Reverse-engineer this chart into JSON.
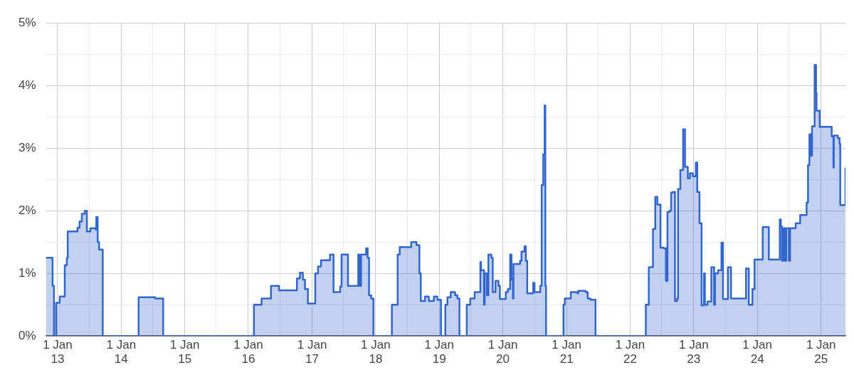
{
  "chart_data": {
    "type": "step",
    "x": [
      "2012-10-26",
      "2012-12-03",
      "2012-12-11",
      "2012-12-23",
      "2013-01-13",
      "2013-02-11",
      "2013-02-23",
      "2013-02-28",
      "2013-04-25",
      "2013-05-07",
      "2013-05-20",
      "2013-06-06",
      "2013-06-18",
      "2013-07-08",
      "2013-08-07",
      "2013-08-11",
      "2013-08-19",
      "2013-08-27",
      "2013-09-17",
      "2014-04-11",
      "2014-07-15",
      "2014-08-30",
      "2016-02-02",
      "2016-03-17",
      "2016-05-10",
      "2016-06-25",
      "2016-10-06",
      "2016-10-23",
      "2016-11-09",
      "2016-11-21",
      "2016-12-08",
      "2017-01-19",
      "2017-02-04",
      "2017-02-21",
      "2017-04-14",
      "2017-05-04",
      "2017-06-11",
      "2017-06-19",
      "2017-07-26",
      "2017-09-23",
      "2017-10-01",
      "2017-10-09",
      "2017-11-07",
      "2017-11-16",
      "2017-11-24",
      "2017-12-06",
      "2017-12-19",
      "2018-04-04",
      "2018-05-07",
      "2018-05-19",
      "2018-07-24",
      "2018-08-23",
      "2018-09-09",
      "2018-09-17",
      "2018-10-11",
      "2018-11-02",
      "2018-12-01",
      "2018-12-21",
      "2019-01-11",
      "2019-02-05",
      "2019-02-17",
      "2019-03-08",
      "2019-04-02",
      "2019-04-15",
      "2019-04-27",
      "2019-06-08",
      "2019-06-28",
      "2019-07-23",
      "2019-08-25",
      "2019-08-29",
      "2019-09-15",
      "2019-09-19",
      "2019-10-02",
      "2019-10-10",
      "2019-10-27",
      "2019-11-04",
      "2019-11-20",
      "2019-12-07",
      "2019-12-15",
      "2020-01-18",
      "2020-01-30",
      "2020-02-12",
      "2020-02-20",
      "2020-02-28",
      "2020-03-02",
      "2020-04-09",
      "2020-04-17",
      "2020-05-04",
      "2020-05-12",
      "2020-05-20",
      "2020-06-23",
      "2020-07-01",
      "2020-08-03",
      "2020-08-11",
      "2020-08-20",
      "2020-08-28",
      "2020-09-01",
      "2020-09-05",
      "2020-12-14",
      "2020-12-22",
      "2021-01-25",
      "2021-03-05",
      "2021-03-09",
      "2021-04-20",
      "2021-05-02",
      "2021-05-18",
      "2021-06-16",
      "2022-04-01",
      "2022-04-18",
      "2022-05-12",
      "2022-05-25",
      "2022-06-06",
      "2022-06-24",
      "2022-07-13",
      "2022-07-25",
      "2022-08-03",
      "2022-08-15",
      "2022-08-24",
      "2022-09-03",
      "2022-09-15",
      "2022-09-27",
      "2022-10-03",
      "2022-10-16",
      "2022-11-01",
      "2022-11-12",
      "2022-11-28",
      "2022-12-10",
      "2022-12-27",
      "2023-01-13",
      "2023-01-21",
      "2023-02-03",
      "2023-02-15",
      "2023-03-01",
      "2023-03-06",
      "2023-03-21",
      "2023-04-12",
      "2023-04-28",
      "2023-05-03",
      "2023-05-21",
      "2023-06-09",
      "2023-06-18",
      "2023-07-16",
      "2023-08-03",
      "2023-10-28",
      "2023-11-13",
      "2023-12-04",
      "2023-12-16",
      "2024-02-01",
      "2024-03-07",
      "2024-05-09",
      "2024-05-15",
      "2024-05-21",
      "2024-05-29",
      "2024-06-07",
      "2024-06-15",
      "2024-06-30",
      "2024-07-07",
      "2024-08-08",
      "2024-09-03",
      "2024-10-10",
      "2024-10-18",
      "2024-10-26",
      "2024-11-03",
      "2024-11-10",
      "2024-11-25",
      "2024-12-03",
      "2024-12-06",
      "2024-12-24",
      "2025-03-03",
      "2025-03-13",
      "2025-03-15",
      "2025-04-07",
      "2025-04-17",
      "2025-04-21",
      "2025-05-21"
    ],
    "series": [
      {
        "color": "#3366cc",
        "values": [
          1.25,
          0.8,
          0,
          0.53,
          0.63,
          1.13,
          1.25,
          1.67,
          1.73,
          1.83,
          1.95,
          2.0,
          1.67,
          1.72,
          1.7,
          1.9,
          1.5,
          1.38,
          0,
          0.62,
          0.6,
          0,
          0.5,
          0.6,
          0.8,
          0.73,
          0.92,
          1.01,
          0.9,
          0.75,
          0.52,
          1.0,
          1.11,
          1.21,
          1.3,
          0.7,
          0.79,
          1.3,
          0.8,
          1.3,
          0.8,
          1.3,
          1.4,
          1.25,
          0.65,
          0.6,
          0,
          0.5,
          1.3,
          1.42,
          1.5,
          1.45,
          1.0,
          0.56,
          0.63,
          0.56,
          0.63,
          0.58,
          0,
          0.5,
          0.62,
          0.7,
          0.65,
          0.6,
          0,
          0.5,
          0.6,
          0.7,
          1.18,
          1.05,
          0.5,
          1.0,
          0.65,
          1.3,
          1.25,
          0.7,
          0.88,
          0.8,
          0.59,
          0.7,
          0.75,
          1.3,
          0.9,
          0.6,
          1.15,
          1.2,
          1.35,
          1.43,
          1.2,
          0.68,
          0.85,
          0.7,
          0.8,
          2.41,
          2.9,
          3.68,
          0.8,
          0,
          0.5,
          0.6,
          0.7,
          0.68,
          0.72,
          0.7,
          0.6,
          0.58,
          0,
          0.5,
          1.1,
          1.71,
          2.22,
          2.1,
          1.41,
          1.4,
          0.88,
          1.98,
          2.0,
          2.29,
          2.3,
          0.56,
          0.6,
          2.35,
          2.65,
          3.3,
          2.7,
          2.52,
          2.6,
          2.55,
          2.77,
          2.3,
          1.8,
          0.49,
          1.0,
          0.5,
          0.55,
          1.1,
          0.5,
          1.0,
          1.05,
          1.49,
          0.59,
          1.1,
          0.6,
          1.08,
          0.5,
          0.75,
          1.22,
          1.74,
          1.22,
          1.86,
          1.75,
          1.2,
          1.72,
          1.2,
          1.72,
          1.2,
          1.72,
          1.8,
          1.93,
          2.13,
          2.73,
          3.22,
          2.88,
          3.35,
          4.33,
          3.89,
          3.6,
          3.34,
          3.19,
          2.69,
          3.2,
          3.16,
          3.07,
          2.09,
          2.69
        ]
      }
    ],
    "xlim": [
      "2012-10-26",
      "2025-05-21"
    ],
    "xticks": [
      {
        "value": "2013-01-01",
        "label": "1 Jan 13"
      },
      {
        "value": "2013-07-01",
        "label": null
      },
      {
        "value": "2014-01-01",
        "label": "1 Jan 14"
      },
      {
        "value": "2014-07-01",
        "label": null
      },
      {
        "value": "2015-01-01",
        "label": "1 Jan 15"
      },
      {
        "value": "2015-07-01",
        "label": null
      },
      {
        "value": "2016-01-01",
        "label": "1 Jan 16"
      },
      {
        "value": "2016-07-01",
        "label": null
      },
      {
        "value": "2017-01-01",
        "label": "1 Jan 17"
      },
      {
        "value": "2017-07-01",
        "label": null
      },
      {
        "value": "2018-01-01",
        "label": "1 Jan 18"
      },
      {
        "value": "2018-07-01",
        "label": null
      },
      {
        "value": "2019-01-01",
        "label": "1 Jan 19"
      },
      {
        "value": "2019-07-01",
        "label": null
      },
      {
        "value": "2020-01-01",
        "label": "1 Jan 20"
      },
      {
        "value": "2020-07-01",
        "label": null
      },
      {
        "value": "2021-01-01",
        "label": "1 Jan 21"
      },
      {
        "value": "2021-07-01",
        "label": null
      },
      {
        "value": "2022-01-01",
        "label": "1 Jan 22"
      },
      {
        "value": "2022-07-01",
        "label": null
      },
      {
        "value": "2023-01-01",
        "label": "1 Jan 23"
      },
      {
        "value": "2023-07-01",
        "label": null
      },
      {
        "value": "2024-01-01",
        "label": "1 Jan 24"
      },
      {
        "value": "2024-07-01",
        "label": null
      },
      {
        "value": "2025-01-01",
        "label": "1 Jan 25"
      }
    ],
    "ylim": [
      0,
      5
    ],
    "yticks": [
      {
        "value": 0,
        "label": "0%"
      },
      {
        "value": 0.5,
        "label": null
      },
      {
        "value": 1,
        "label": "1%"
      },
      {
        "value": 1.5,
        "label": null
      },
      {
        "value": 2,
        "label": "2%"
      },
      {
        "value": 2.5,
        "label": null
      },
      {
        "value": 3,
        "label": "3%"
      },
      {
        "value": 3.5,
        "label": null
      },
      {
        "value": 4,
        "label": "4%"
      },
      {
        "value": 4.5,
        "label": null
      },
      {
        "value": 5,
        "label": "5%"
      }
    ],
    "grid": true
  }
}
